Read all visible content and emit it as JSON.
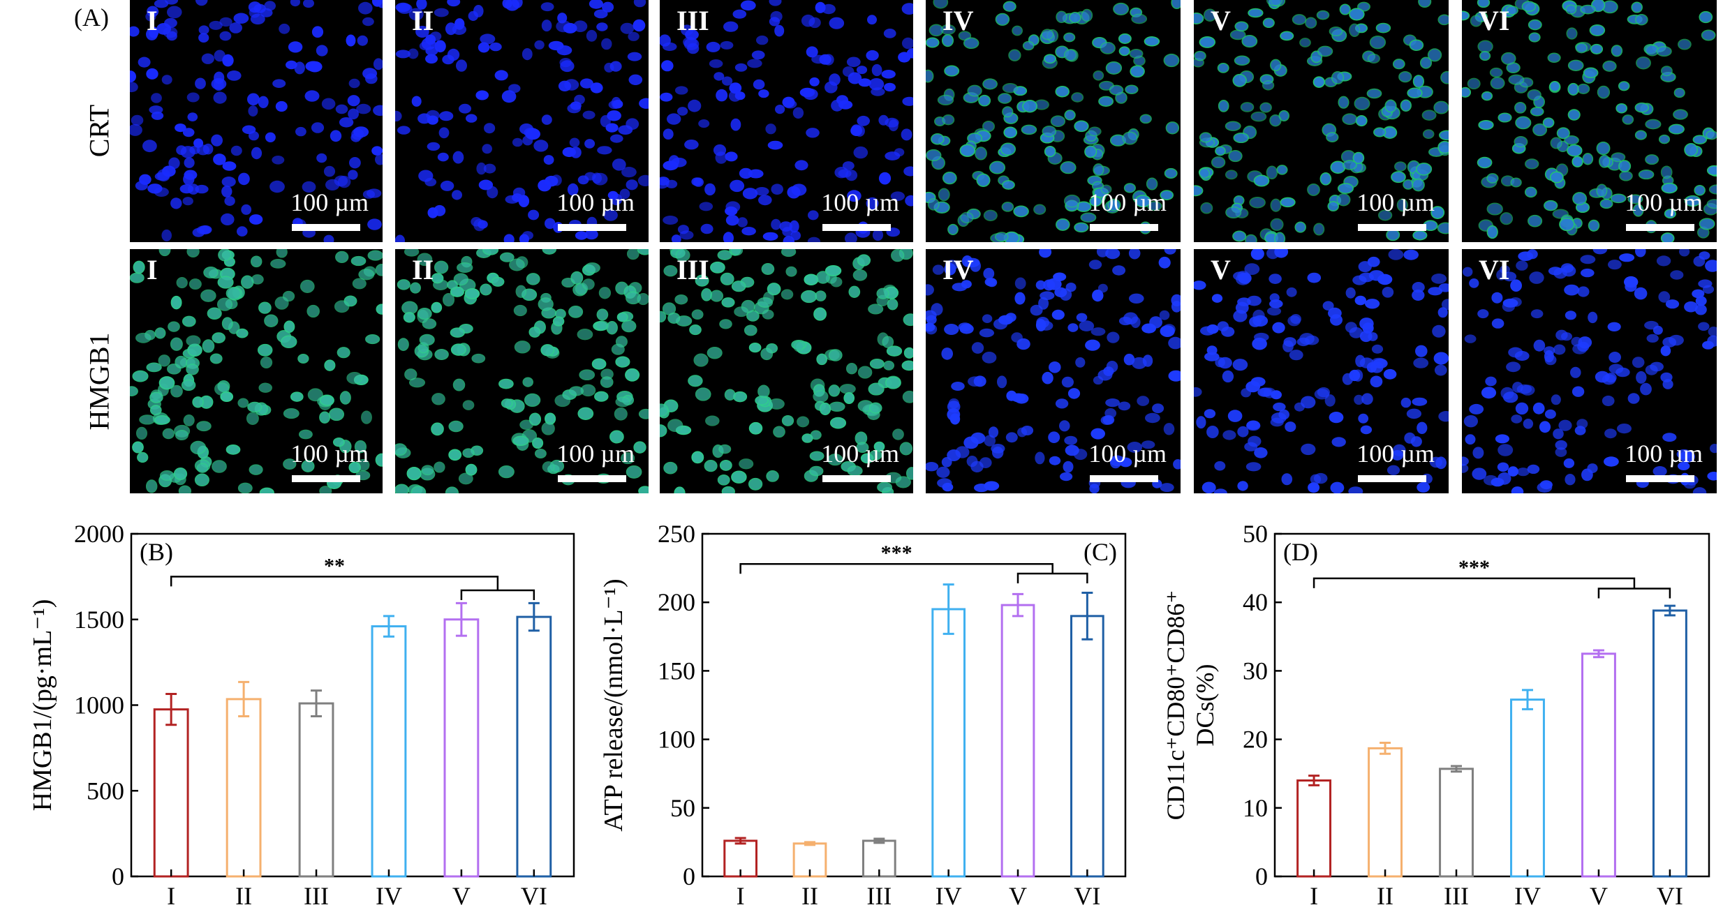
{
  "panel_a": {
    "letter": "(A)",
    "rows": [
      {
        "label": "CRT",
        "nucleus_color": "#1a2bff",
        "stain_color": "#22c86a",
        "stain_levels": [
          0,
          0,
          0,
          1,
          1,
          1
        ]
      },
      {
        "label": "HMGB1",
        "nucleus_color": "#1e3cff",
        "stain_color": "#2fd08a",
        "stain_levels": [
          1,
          1,
          1,
          0,
          0,
          0
        ]
      }
    ],
    "tile_labels": [
      "I",
      "II",
      "III",
      "IV",
      "V",
      "VI"
    ],
    "scale_text": "100 µm"
  },
  "colors": [
    "#b22222",
    "#f5b06e",
    "#7f7f7f",
    "#3fb0f0",
    "#b36ff0",
    "#1f5fa5"
  ],
  "chart_data": [
    {
      "type": "bar",
      "panel": "(B)",
      "categories": [
        "I",
        "II",
        "III",
        "IV",
        "V",
        "VI"
      ],
      "values": [
        975,
        1035,
        1010,
        1460,
        1500,
        1515
      ],
      "errors": [
        90,
        100,
        75,
        60,
        95,
        80
      ],
      "ylabel": "HMGB1/(pg·mL⁻¹)",
      "ylim": [
        0,
        2000
      ],
      "yticks": [
        0,
        500,
        1000,
        1500,
        2000
      ],
      "significance": {
        "label": "**",
        "from": 0,
        "to_pair": [
          4,
          5
        ],
        "level": 1750,
        "inner_level": 1670
      }
    },
    {
      "type": "bar",
      "panel": "(C)",
      "categories": [
        "I",
        "II",
        "III",
        "IV",
        "V",
        "VI"
      ],
      "values": [
        26,
        24,
        26,
        195,
        198,
        190
      ],
      "errors": [
        2,
        1,
        1.5,
        18,
        8,
        17
      ],
      "ylabel": "ATP release/(nmol·L⁻¹)",
      "ylim": [
        0,
        250
      ],
      "yticks": [
        0,
        50,
        100,
        150,
        200,
        250
      ],
      "significance": {
        "label": "***",
        "from": 0,
        "to_pair": [
          4,
          5
        ],
        "level": 228,
        "inner_level": 221
      }
    },
    {
      "type": "bar",
      "panel": "(D)",
      "categories": [
        "I",
        "II",
        "III",
        "IV",
        "V",
        "VI"
      ],
      "values": [
        14,
        18.7,
        15.7,
        25.8,
        32.5,
        38.8
      ],
      "errors": [
        0.7,
        0.8,
        0.4,
        1.4,
        0.5,
        0.7
      ],
      "ylabel_line1": "CD11c⁺CD80⁺CD86⁺",
      "ylabel_line2": "DCs(%)",
      "ylim": [
        0,
        50
      ],
      "yticks": [
        0,
        10,
        20,
        30,
        40,
        50
      ],
      "significance": {
        "label": "***",
        "from": 0,
        "to_pair": [
          4,
          5
        ],
        "level": 43.5,
        "inner_level": 42
      }
    }
  ]
}
